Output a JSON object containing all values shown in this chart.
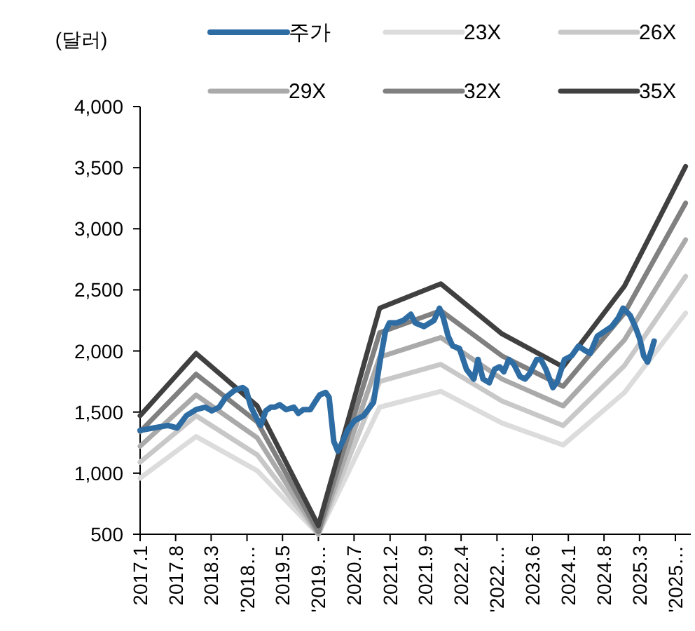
{
  "chart_data": {
    "type": "line",
    "ylabel": "(달러)",
    "legend": "top",
    "grid": false,
    "line_style": "solid",
    "marker": "none",
    "xlim": [
      "2017-01",
      "2026-01"
    ],
    "ylim": [
      500,
      4000
    ],
    "yticks": [
      500,
      {
        "value": 1000,
        "label": "1,000"
      },
      {
        "value": 1500,
        "label": "1,500"
      },
      {
        "value": 2000,
        "label": "2,000"
      },
      {
        "value": 2500,
        "label": "2,500"
      },
      {
        "value": 3000,
        "label": "3,000"
      },
      {
        "value": 3500,
        "label": "3,500"
      },
      {
        "value": 4000,
        "label": "4,000"
      }
    ],
    "xticks": [
      {
        "value": "2017-01",
        "label": "2017.1"
      },
      {
        "value": "2017-08",
        "label": "2017.8"
      },
      {
        "value": "2018-03",
        "label": "2018.3"
      },
      {
        "value": "2018-10",
        "label": "'2018…"
      },
      {
        "value": "2019-05",
        "label": "2019.5"
      },
      {
        "value": "2019-12",
        "label": "'2019…"
      },
      {
        "value": "2020-07",
        "label": "2020.7"
      },
      {
        "value": "2021-02",
        "label": "2021.2"
      },
      {
        "value": "2021-09",
        "label": "2021.9"
      },
      {
        "value": "2022-04",
        "label": "2022.4"
      },
      {
        "value": "2022-11",
        "label": "'2022…"
      },
      {
        "value": "2023-06",
        "label": "2023.6"
      },
      {
        "value": "2024-01",
        "label": "2024.1"
      },
      {
        "value": "2024-08",
        "label": "2024.8"
      },
      {
        "value": "2025-03",
        "label": "2025.3"
      },
      {
        "value": "2025-10",
        "label": "'2025…"
      }
    ],
    "series": [
      {
        "name": "주가",
        "color": "#2e6ca4",
        "x": [
          "2017-01-01",
          "2017-03-22",
          "2017-06-16",
          "2017-08-10",
          "2017-10-04",
          "2017-12-02",
          "2018-01-25",
          "2018-03-05",
          "2018-04-18",
          "2018-05-27",
          "2018-07-21",
          "2018-09-05",
          "2018-09-26",
          "2018-10-25",
          "2018-11-27",
          "2018-12-22",
          "2019-01-21",
          "2019-02-20",
          "2019-03-16",
          "2019-04-14",
          "2019-05-23",
          "2019-07-08",
          "2019-08-03",
          "2019-09-02",
          "2019-10-14",
          "2019-11-10",
          "2019-12-09",
          "2020-01-14",
          "2020-02-03",
          "2020-03-02",
          "2020-03-26",
          "2020-04-18",
          "2020-05-23",
          "2020-07-04",
          "2020-08-27",
          "2020-10-25",
          "2020-12-05",
          "2021-01-04",
          "2021-01-28",
          "2021-03-12",
          "2021-04-21",
          "2021-06-05",
          "2021-07-01",
          "2021-08-23",
          "2021-10-21",
          "2021-11-23",
          "2021-12-16",
          "2022-01-14",
          "2022-02-10",
          "2022-03-22",
          "2022-05-03",
          "2022-06-16",
          "2022-07-11",
          "2022-08-10",
          "2022-09-16",
          "2022-10-18",
          "2022-11-17",
          "2022-12-12",
          "2023-01-11",
          "2023-02-10",
          "2023-03-19",
          "2023-04-18",
          "2023-05-13",
          "2023-06-26",
          "2023-07-21",
          "2023-08-20",
          "2023-10-01",
          "2023-10-28",
          "2023-12-09",
          "2024-01-21",
          "2024-03-02",
          "2024-04-14",
          "2024-05-10",
          "2024-06-22",
          "2024-08-03",
          "2024-09-16",
          "2024-10-25",
          "2024-11-23",
          "2025-01-04",
          "2025-02-03",
          "2025-03-02",
          "2025-03-26",
          "2025-04-18",
          "2025-05-10",
          "2025-05-27"
        ],
        "values": [
          1350,
          1370,
          1390,
          1370,
          1470,
          1520,
          1540,
          1510,
          1540,
          1620,
          1680,
          1700,
          1680,
          1540,
          1450,
          1390,
          1510,
          1540,
          1540,
          1560,
          1520,
          1540,
          1490,
          1520,
          1520,
          1580,
          1640,
          1660,
          1620,
          1260,
          1180,
          1240,
          1350,
          1430,
          1470,
          1580,
          1930,
          2160,
          2230,
          2230,
          2250,
          2300,
          2230,
          2200,
          2250,
          2350,
          2270,
          2120,
          2040,
          2020,
          1850,
          1770,
          1930,
          1770,
          1740,
          1850,
          1870,
          1830,
          1930,
          1890,
          1790,
          1770,
          1810,
          1930,
          1930,
          1850,
          1700,
          1750,
          1930,
          1960,
          2040,
          2000,
          1980,
          2120,
          2160,
          2200,
          2270,
          2350,
          2290,
          2200,
          2100,
          1960,
          1910,
          2000,
          2080
        ]
      },
      {
        "name": "23X",
        "color": "#dcdcdc",
        "x": [
          "2017-01",
          "2017-12",
          "2018-12",
          "2019-12",
          "2020-12",
          "2021-12",
          "2022-12",
          "2023-12",
          "2024-12",
          "2025-12"
        ],
        "values": [
          960,
          1300,
          1020,
          500,
          1540,
          1670,
          1410,
          1230,
          1660,
          2310
        ]
      },
      {
        "name": "26X",
        "color": "#c8c8c8",
        "x": [
          "2017-01",
          "2017-12",
          "2018-12",
          "2019-12",
          "2020-12",
          "2021-12",
          "2022-12",
          "2023-12",
          "2024-12",
          "2025-12"
        ],
        "values": [
          1090,
          1470,
          1150,
          500,
          1750,
          1890,
          1590,
          1390,
          1880,
          2610
        ]
      },
      {
        "name": "29X",
        "color": "#aaaaaa",
        "x": [
          "2017-01",
          "2017-12",
          "2018-12",
          "2019-12",
          "2020-12",
          "2021-12",
          "2022-12",
          "2023-12",
          "2024-12",
          "2025-12"
        ],
        "values": [
          1220,
          1640,
          1290,
          500,
          1950,
          2110,
          1770,
          1550,
          2090,
          2910
        ]
      },
      {
        "name": "32X",
        "color": "#808080",
        "x": [
          "2017-01",
          "2017-12",
          "2018-12",
          "2019-12",
          "2020-12",
          "2021-12",
          "2022-12",
          "2023-12",
          "2024-12",
          "2025-12"
        ],
        "values": [
          1340,
          1810,
          1420,
          520,
          2150,
          2330,
          1960,
          1710,
          2310,
          3210
        ]
      },
      {
        "name": "35X",
        "color": "#404040",
        "x": [
          "2017-01",
          "2017-12",
          "2018-12",
          "2019-12",
          "2020-12",
          "2021-12",
          "2022-12",
          "2023-12",
          "2024-12",
          "2025-12"
        ],
        "values": [
          1470,
          1980,
          1550,
          570,
          2350,
          2550,
          2140,
          1870,
          2530,
          3510
        ]
      }
    ]
  }
}
